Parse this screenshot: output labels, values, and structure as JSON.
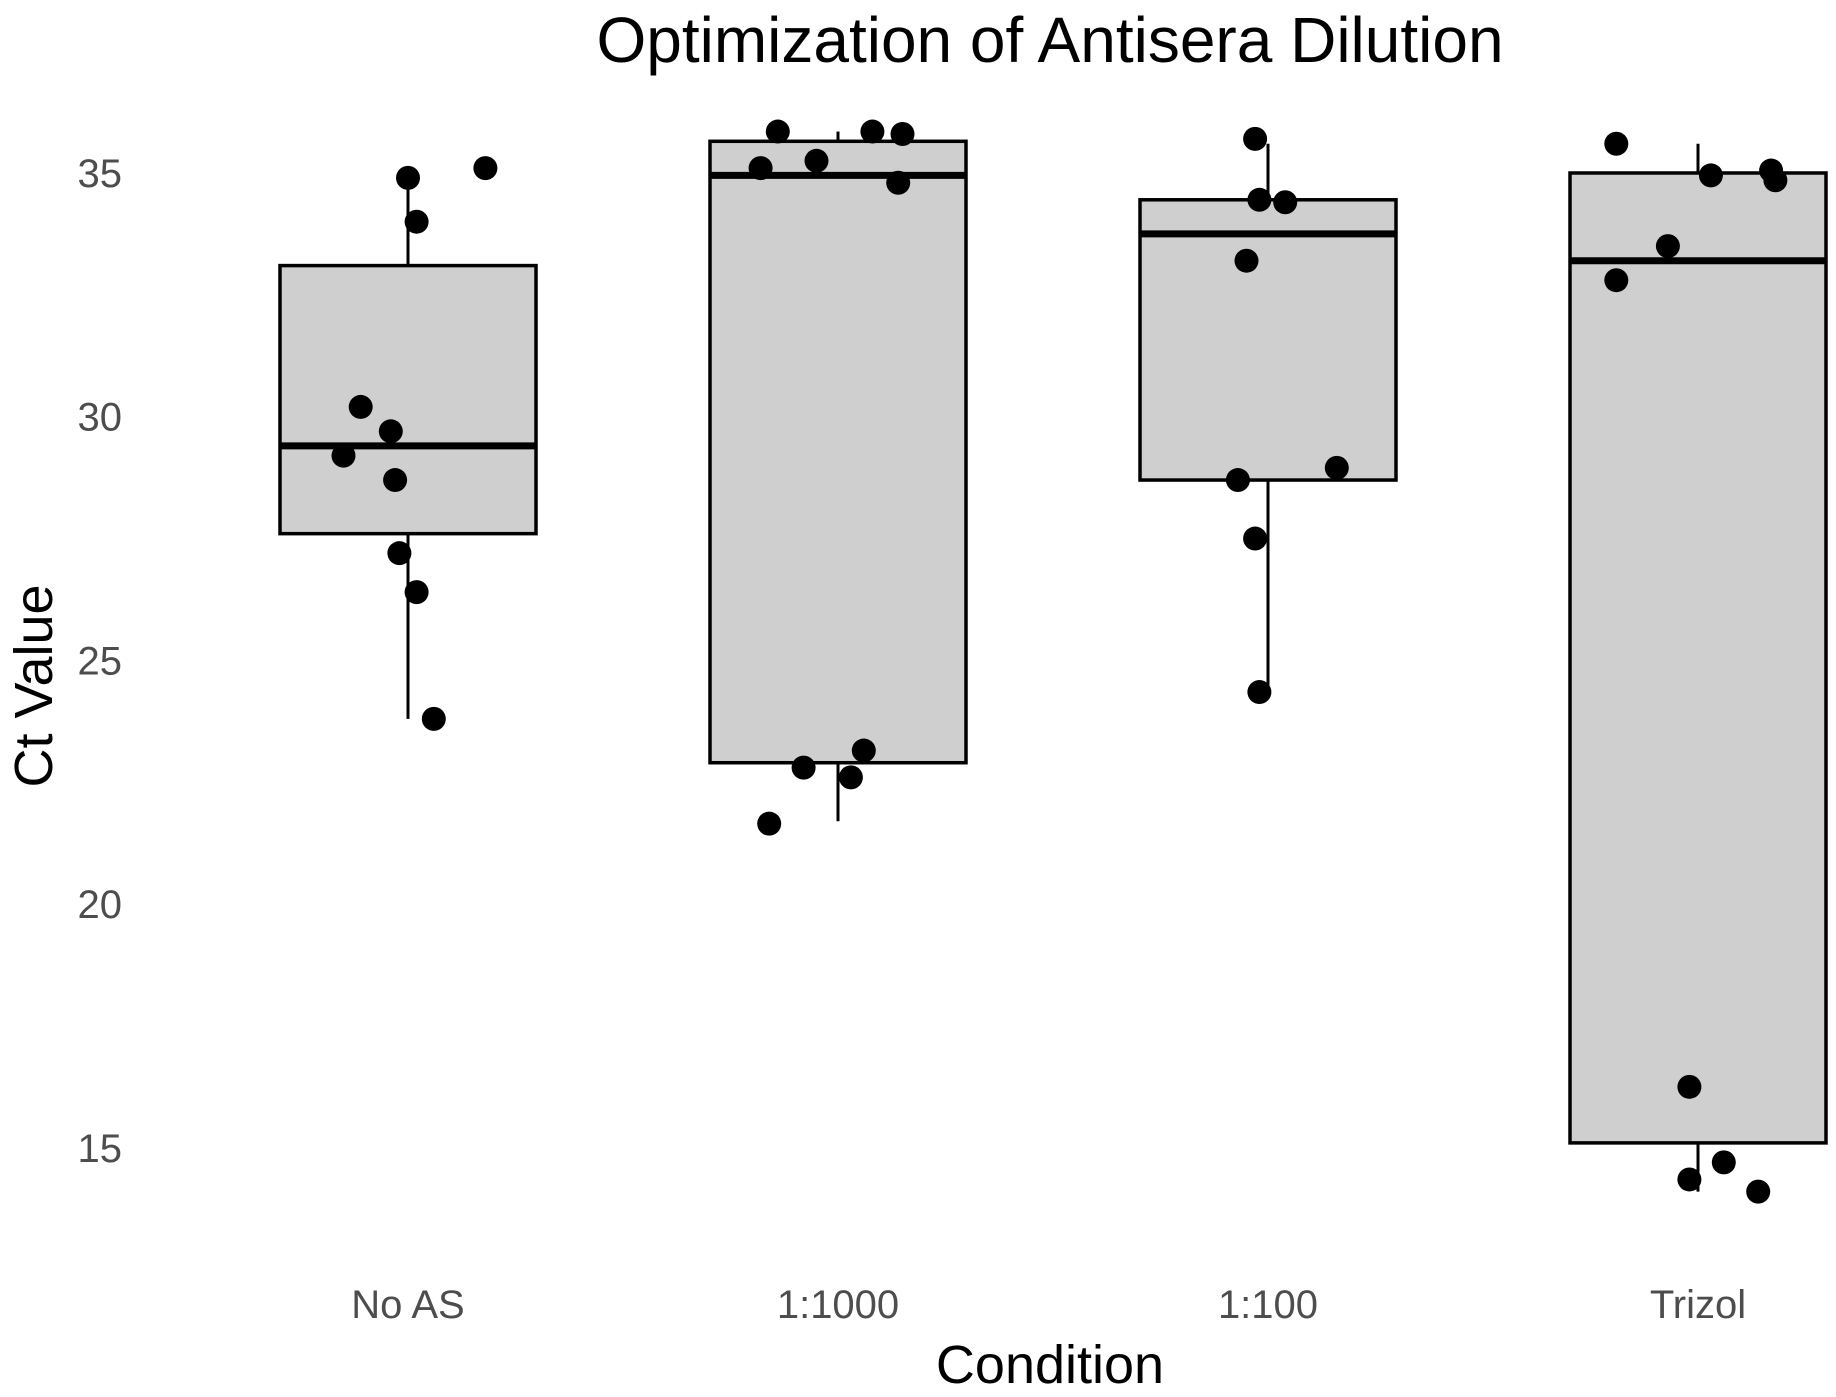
{
  "chart_data": {
    "type": "boxplot",
    "title": "Optimization of Antisera Dilution",
    "xlabel": "Condition",
    "ylabel": "Ct Value",
    "ylim": [
      12.8,
      36.6
    ],
    "yticks": [
      15,
      20,
      25,
      30,
      35
    ],
    "grid": false,
    "categories": [
      "No AS",
      "1:1000",
      "1:100",
      "Trizol"
    ],
    "boxes": [
      {
        "name": "No AS",
        "lower_whisker": 23.8,
        "q1": 27.6,
        "median": 29.4,
        "q3": 33.1,
        "upper_whisker": 35.0
      },
      {
        "name": "1:1000",
        "lower_whisker": 21.7,
        "q1": 22.9,
        "median": 34.95,
        "q3": 35.65,
        "upper_whisker": 35.85
      },
      {
        "name": "1:100",
        "lower_whisker": 24.4,
        "q1": 28.7,
        "median": 33.75,
        "q3": 34.45,
        "upper_whisker": 35.6
      },
      {
        "name": "Trizol",
        "lower_whisker": 14.1,
        "q1": 15.1,
        "median": 33.2,
        "q3": 35.0,
        "upper_whisker": 35.6
      }
    ],
    "points": [
      {
        "category": "No AS",
        "jitter": 0.0,
        "y": 34.9
      },
      {
        "category": "No AS",
        "jitter": 0.18,
        "y": 35.1
      },
      {
        "category": "No AS",
        "jitter": 0.02,
        "y": 34.0
      },
      {
        "category": "No AS",
        "jitter": -0.11,
        "y": 30.2
      },
      {
        "category": "No AS",
        "jitter": -0.04,
        "y": 29.7
      },
      {
        "category": "No AS",
        "jitter": -0.15,
        "y": 29.2
      },
      {
        "category": "No AS",
        "jitter": -0.03,
        "y": 28.7
      },
      {
        "category": "No AS",
        "jitter": -0.02,
        "y": 27.2
      },
      {
        "category": "No AS",
        "jitter": 0.02,
        "y": 26.4
      },
      {
        "category": "No AS",
        "jitter": 0.06,
        "y": 23.8
      },
      {
        "category": "1:1000",
        "jitter": -0.14,
        "y": 35.85
      },
      {
        "category": "1:1000",
        "jitter": 0.08,
        "y": 35.85
      },
      {
        "category": "1:1000",
        "jitter": 0.15,
        "y": 35.8
      },
      {
        "category": "1:1000",
        "jitter": -0.05,
        "y": 35.25
      },
      {
        "category": "1:1000",
        "jitter": -0.18,
        "y": 35.1
      },
      {
        "category": "1:1000",
        "jitter": 0.14,
        "y": 34.8
      },
      {
        "category": "1:1000",
        "jitter": 0.06,
        "y": 23.15
      },
      {
        "category": "1:1000",
        "jitter": -0.08,
        "y": 22.8
      },
      {
        "category": "1:1000",
        "jitter": 0.03,
        "y": 22.6
      },
      {
        "category": "1:1000",
        "jitter": -0.16,
        "y": 21.65
      },
      {
        "category": "1:100",
        "jitter": -0.03,
        "y": 35.7
      },
      {
        "category": "1:100",
        "jitter": -0.02,
        "y": 34.45
      },
      {
        "category": "1:100",
        "jitter": 0.04,
        "y": 34.4
      },
      {
        "category": "1:100",
        "jitter": -0.05,
        "y": 33.2
      },
      {
        "category": "1:100",
        "jitter": 0.16,
        "y": 28.95
      },
      {
        "category": "1:100",
        "jitter": -0.07,
        "y": 28.7
      },
      {
        "category": "1:100",
        "jitter": -0.03,
        "y": 27.5
      },
      {
        "category": "1:100",
        "jitter": -0.02,
        "y": 24.35
      },
      {
        "category": "Trizol",
        "jitter": -0.19,
        "y": 35.6
      },
      {
        "category": "Trizol",
        "jitter": 0.17,
        "y": 35.05
      },
      {
        "category": "Trizol",
        "jitter": 0.03,
        "y": 34.95
      },
      {
        "category": "Trizol",
        "jitter": 0.18,
        "y": 34.85
      },
      {
        "category": "Trizol",
        "jitter": -0.07,
        "y": 33.5
      },
      {
        "category": "Trizol",
        "jitter": -0.19,
        "y": 32.8
      },
      {
        "category": "Trizol",
        "jitter": -0.02,
        "y": 16.25
      },
      {
        "category": "Trizol",
        "jitter": 0.06,
        "y": 14.7
      },
      {
        "category": "Trizol",
        "jitter": -0.02,
        "y": 14.35
      },
      {
        "category": "Trizol",
        "jitter": 0.14,
        "y": 14.1
      }
    ]
  }
}
